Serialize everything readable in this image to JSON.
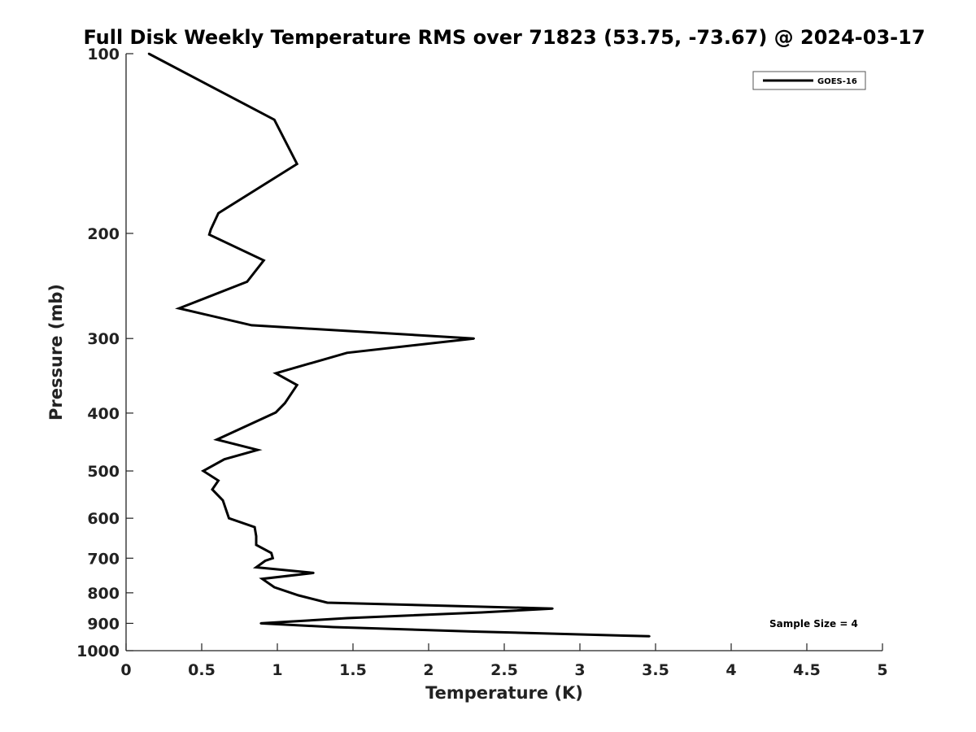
{
  "chart_data": {
    "type": "line",
    "title": "Full Disk Weekly Temperature RMS over 71823 (53.75, -73.67) @ 2024-03-17",
    "xlabel": "Temperature (K)",
    "ylabel": "Pressure (mb)",
    "xlim": [
      0,
      5
    ],
    "ylim": [
      1000,
      100
    ],
    "yscale": "log",
    "y_reversed": true,
    "x_ticks": [
      "0",
      "0.5",
      "1",
      "1.5",
      "2",
      "2.5",
      "3",
      "3.5",
      "4",
      "4.5",
      "5"
    ],
    "y_ticks": [
      "100",
      "200",
      "300",
      "400",
      "500",
      "600",
      "700",
      "800",
      "900",
      "1000"
    ],
    "y_tick_values": [
      100,
      200,
      300,
      400,
      500,
      600,
      700,
      800,
      900,
      1000
    ],
    "x_tick_values": [
      0,
      0.5,
      1,
      1.5,
      2,
      2.5,
      3,
      3.5,
      4,
      4.5,
      5
    ],
    "grid": false,
    "legend_position": "top-right",
    "annotation": "Sample Size = 4",
    "series": [
      {
        "name": "GOES-16",
        "color": "#000000",
        "points": [
          [
            0.15,
            100
          ],
          [
            0.98,
            129
          ],
          [
            1.13,
            153
          ],
          [
            0.61,
            185
          ],
          [
            0.56,
            197
          ],
          [
            0.55,
            201
          ],
          [
            0.91,
            222
          ],
          [
            0.8,
            241
          ],
          [
            0.35,
            267
          ],
          [
            0.83,
            285
          ],
          [
            2.3,
            300
          ],
          [
            1.46,
            317
          ],
          [
            0.99,
            343
          ],
          [
            1.13,
            359
          ],
          [
            1.05,
            385
          ],
          [
            0.99,
            399
          ],
          [
            0.6,
            443
          ],
          [
            0.87,
            461
          ],
          [
            0.65,
            478
          ],
          [
            0.51,
            500
          ],
          [
            0.61,
            519
          ],
          [
            0.57,
            537
          ],
          [
            0.64,
            560
          ],
          [
            0.68,
            600
          ],
          [
            0.85,
            621
          ],
          [
            0.86,
            643
          ],
          [
            0.86,
            665
          ],
          [
            0.96,
            686
          ],
          [
            0.97,
            700
          ],
          [
            0.92,
            707
          ],
          [
            0.86,
            725
          ],
          [
            1.24,
            741
          ],
          [
            0.9,
            758
          ],
          [
            0.98,
            783
          ],
          [
            1.14,
            808
          ],
          [
            1.33,
            831
          ],
          [
            2.82,
            850
          ],
          [
            2.35,
            863
          ],
          [
            1.46,
            882
          ],
          [
            0.89,
            900
          ],
          [
            1.37,
            913
          ],
          [
            2.3,
            929
          ],
          [
            3.46,
            946
          ]
        ]
      }
    ]
  }
}
